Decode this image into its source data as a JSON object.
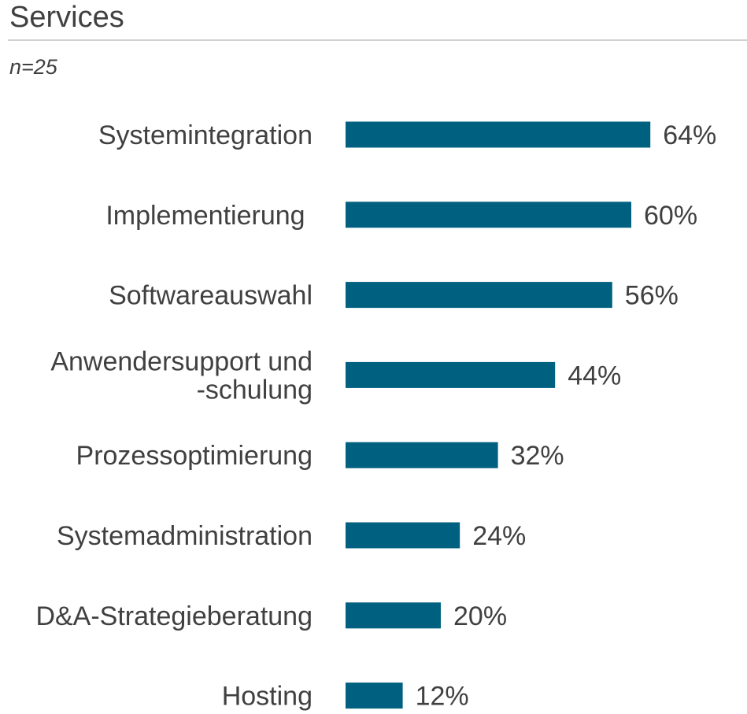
{
  "header": {
    "title": "Services",
    "subtitle": "n=25"
  },
  "colors": {
    "bar": "#00607f",
    "text": "#404040",
    "rule": "#d0d0d0"
  },
  "chart_data": {
    "type": "bar",
    "orientation": "horizontal",
    "title": "Services",
    "subtitle": "n=25",
    "categories": [
      [
        "Systemintegration"
      ],
      [
        "Implementierung "
      ],
      [
        "Softwareauswahl"
      ],
      [
        "Anwendersupport und",
        "-schulung"
      ],
      [
        "Prozessoptimierung"
      ],
      [
        "Systemadministration"
      ],
      [
        "D&A-Strategieberatung"
      ],
      [
        "Hosting"
      ]
    ],
    "values": [
      64,
      60,
      56,
      44,
      32,
      24,
      20,
      12
    ],
    "value_labels": [
      "64%",
      "60%",
      "56%",
      "44%",
      "32%",
      "24%",
      "20%",
      "12%"
    ],
    "unit": "%",
    "xlim": [
      0,
      100
    ],
    "grid": false,
    "legend": "none"
  }
}
